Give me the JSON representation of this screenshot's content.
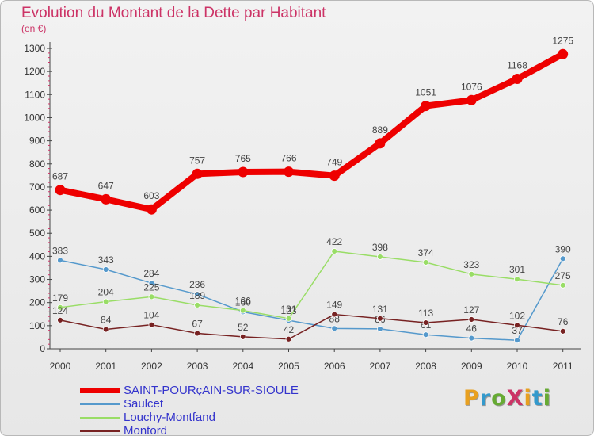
{
  "header": {
    "title": "Evolution du Montant de la Dette par Habitant",
    "subtitle": "(en €)"
  },
  "brand": "ProXiti",
  "brand_colors": [
    "#e8a020",
    "#3399cc",
    "#66aa33",
    "#cc3366",
    "#e8a020",
    "#3399cc",
    "#66aa33"
  ],
  "chart_data": {
    "type": "line",
    "x": [
      "2000",
      "2001",
      "2002",
      "2003",
      "2004",
      "2005",
      "2006",
      "2007",
      "2008",
      "2009",
      "2010",
      "2011"
    ],
    "ylim": [
      0,
      1300
    ],
    "yticks": [
      0,
      100,
      200,
      300,
      400,
      500,
      600,
      700,
      800,
      900,
      1000,
      1100,
      1200,
      1300
    ],
    "grid": false,
    "legend_position": "bottom-left",
    "series": [
      {
        "name": "SAINT-POURçAIN-SUR-SIOULE",
        "color": "#ee0000",
        "values": [
          687,
          647,
          603,
          757,
          765,
          766,
          749,
          889,
          1051,
          1076,
          1168,
          1275
        ],
        "labels": [
          "687",
          "647",
          "603",
          "757",
          "765",
          "766",
          "749",
          "889",
          "1051",
          "1076",
          "1168",
          "1275"
        ]
      },
      {
        "name": "Saulcet",
        "color": "#5599cc",
        "values": [
          383,
          343,
          284,
          236,
          160,
          123,
          88,
          86,
          61,
          46,
          37,
          390
        ],
        "labels": [
          "383",
          "343",
          "284",
          "236",
          "160",
          "123",
          "88",
          "86",
          "61",
          "46",
          "37",
          "390"
        ]
      },
      {
        "name": "Louchy-Montfand",
        "color": "#99dd66",
        "values": [
          179,
          204,
          225,
          189,
          166,
          131,
          422,
          398,
          374,
          323,
          301,
          275
        ],
        "labels": [
          "179",
          "204",
          "225",
          "189",
          "166",
          "131",
          "422",
          "398",
          "374",
          "323",
          "301",
          "275"
        ]
      },
      {
        "name": "Montord",
        "color": "#772222",
        "values": [
          124,
          84,
          104,
          67,
          52,
          42,
          149,
          131,
          113,
          127,
          102,
          76
        ],
        "labels": [
          "124",
          "84",
          "104",
          "67",
          "52",
          "42",
          "149",
          "131",
          "113",
          "127",
          "102",
          "76"
        ]
      }
    ]
  }
}
